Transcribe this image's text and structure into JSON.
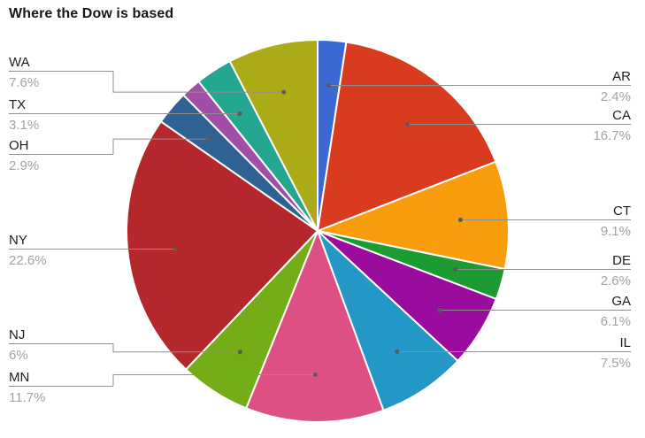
{
  "chart_data": {
    "type": "pie",
    "title": "Where the Dow is based",
    "unit": "%",
    "direction": "clockwise",
    "start_angle_deg": 0,
    "legend": "none",
    "label_style": "callout leader lines with state code above rule and percent below, left and right columns",
    "style": {
      "background": "#ffffff",
      "title_color": "#161616",
      "label_color": "#1d1d1d",
      "pct_color": "#a3a3a3",
      "line_color": "#8f8f8f",
      "dot_color": "#5a5a5a",
      "slice_gap_color": "#ffffff"
    },
    "slices": [
      {
        "label": "AR",
        "value": 2.4,
        "display": "2.4%",
        "color": "#3c69d1",
        "label_side": "right"
      },
      {
        "label": "CA",
        "value": 16.7,
        "display": "16.7%",
        "color": "#d93b1e",
        "label_side": "right"
      },
      {
        "label": "CT",
        "value": 9.1,
        "display": "9.1%",
        "color": "#f99d0c",
        "label_side": "right"
      },
      {
        "label": "DE",
        "value": 2.6,
        "display": "2.6%",
        "color": "#1d9b33",
        "label_side": "right"
      },
      {
        "label": "GA",
        "value": 6.1,
        "display": "6.1%",
        "color": "#9a0c9d",
        "label_side": "right"
      },
      {
        "label": "IL",
        "value": 7.5,
        "display": "7.5%",
        "color": "#2397c5",
        "label_side": "right"
      },
      {
        "label": "MN",
        "value": 11.7,
        "display": "11.7%",
        "color": "#dc5083",
        "label_side": "left"
      },
      {
        "label": "NJ",
        "value": 6,
        "display": "6%",
        "color": "#74ad17",
        "label_side": "left"
      },
      {
        "label": "NY",
        "value": 22.6,
        "display": "22.6%",
        "color": "#b4282c",
        "label_side": "left"
      },
      {
        "label": "OH",
        "value": 2.9,
        "display": "2.9%",
        "color": "#2f6293",
        "label_side": "left"
      },
      {
        "label": "",
        "value": 1.7,
        "display": "",
        "color": "#a14ea8",
        "label_side": "none"
      },
      {
        "label": "TX",
        "value": 3.1,
        "display": "3.1%",
        "color": "#23a78f",
        "label_side": "left"
      },
      {
        "label": "WA",
        "value": 7.6,
        "display": "7.6%",
        "color": "#abaa17",
        "label_side": "left"
      }
    ]
  }
}
